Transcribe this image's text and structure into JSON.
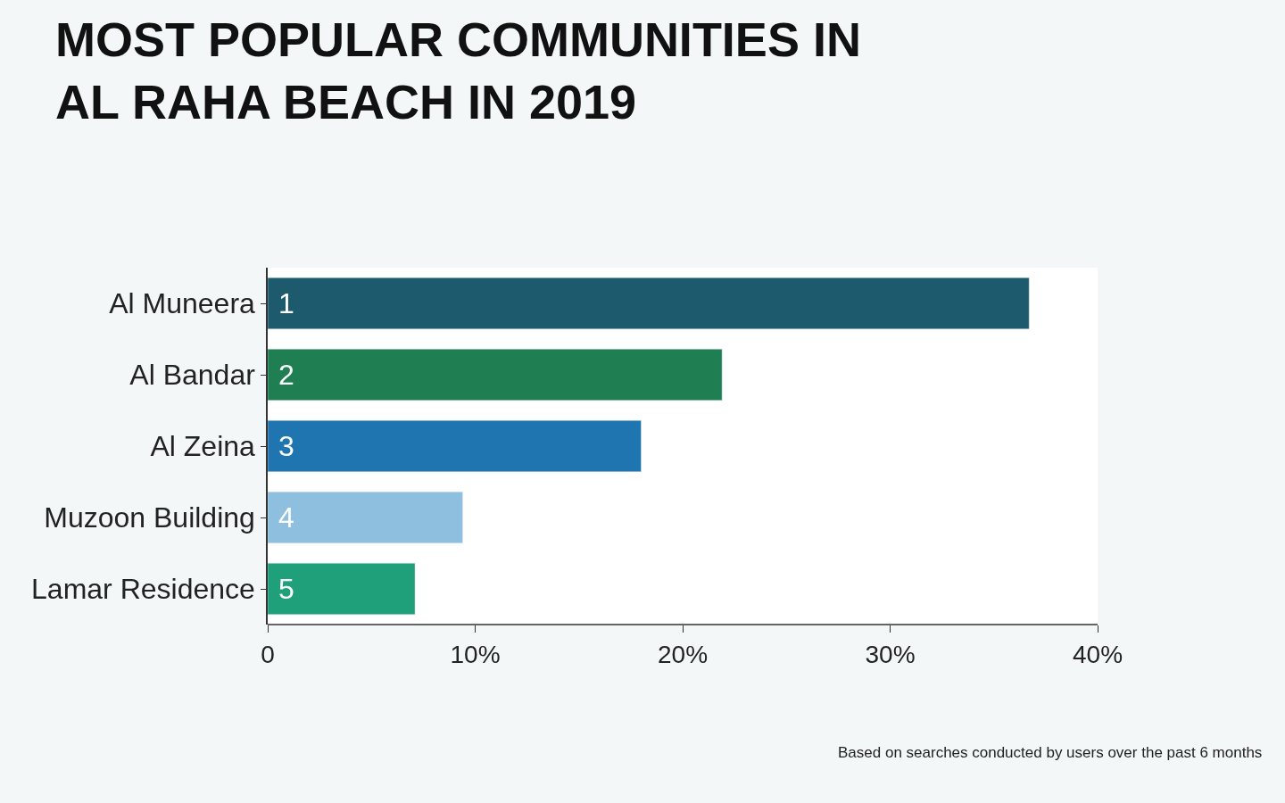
{
  "chart_data": {
    "type": "bar",
    "orientation": "horizontal",
    "title": "MOST POPULAR COMMUNITIES IN\nAL RAHA BEACH IN 2019",
    "categories": [
      "Al Muneera",
      "Al Bandar",
      "Al Zeina",
      "Muzoon Building",
      "Lamar Residence"
    ],
    "values": [
      36.7,
      21.9,
      18.0,
      9.4,
      7.1
    ],
    "colors": [
      "#1d5a6e",
      "#1f7f52",
      "#1f75b0",
      "#8fbfdf",
      "#1fa07a"
    ],
    "xlim": [
      0,
      40
    ],
    "xticks": [
      0,
      {
        "value": 10,
        "label": "10%"
      },
      {
        "value": 20,
        "label": "20%"
      },
      {
        "value": 30,
        "label": "30%"
      },
      {
        "value": 40,
        "label": "40%"
      }
    ],
    "annotations": [
      "1",
      "2",
      "3",
      "4",
      "5",
      "Based on searches conducted by users over the past 6 months"
    ]
  }
}
